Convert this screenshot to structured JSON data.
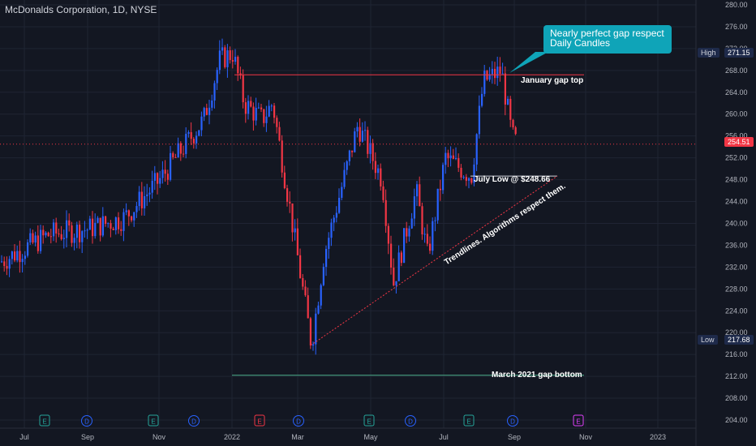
{
  "header": {
    "title": "McDonalds Corporation, 1D, NYSE"
  },
  "annotations": {
    "callout_line1": "Nearly perfect gap respect",
    "callout_line2": "Daily Candles",
    "january_gap_top": "January gap top",
    "july_low": "July Low @ $248.66",
    "trendline_note": "Trendlines. Algorithms respect them.",
    "march_gap_bottom": "March 2021 gap bottom"
  },
  "tags": {
    "high_label": "High",
    "high_value": "271.15",
    "last_value": "254.51",
    "low_label": "Low",
    "low_value": "217.68"
  },
  "chart_data": {
    "type": "candlestick",
    "title": "McDonalds Corporation, 1D, NYSE",
    "ylim": [
      202,
      281
    ],
    "y_ticks": [
      "204.00",
      "208.00",
      "212.00",
      "216.00",
      "220.00",
      "224.00",
      "228.00",
      "232.00",
      "236.00",
      "240.00",
      "244.00",
      "248.00",
      "252.00",
      "256.00",
      "260.00",
      "264.00",
      "268.00",
      "272.00",
      "276.00",
      "280.00"
    ],
    "x_ticks": [
      "Jul",
      "Sep",
      "Nov",
      "2022",
      "Mar",
      "May",
      "Jul",
      "Sep",
      "Nov",
      "2023"
    ],
    "price_path": [
      [
        "Jul",
        233
      ],
      [
        "Aug",
        238
      ],
      [
        "Sep",
        239
      ],
      [
        "Oct",
        241
      ],
      [
        "Nov",
        248
      ],
      [
        "Dec",
        259
      ],
      [
        "Dec",
        270
      ],
      [
        "2022",
        271.15
      ],
      [
        "Jan",
        262
      ],
      [
        "Feb",
        259
      ],
      [
        "Feb",
        262
      ],
      [
        "Mar",
        244
      ],
      [
        "Mar",
        217.68
      ],
      [
        "Apr",
        234
      ],
      [
        "Apr",
        258
      ],
      [
        "May",
        248
      ],
      [
        "May",
        229
      ],
      [
        "Jun",
        246
      ],
      [
        "Jun",
        234
      ],
      [
        "Jul",
        252
      ],
      [
        "Jul",
        248.66
      ],
      [
        "Aug",
        266
      ],
      [
        "Aug",
        268
      ],
      [
        "Sep",
        256
      ],
      [
        "Sep",
        254.51
      ]
    ],
    "last_price": 254.51,
    "high": 271.15,
    "low": 217.68,
    "levels": [
      {
        "label": "January gap top",
        "value": 267.2
      },
      {
        "label": "July Low @ $248.66",
        "value": 248.66
      },
      {
        "label": "March 2021 gap bottom",
        "value": 212.2
      }
    ],
    "trendline": {
      "from": [
        "Mar",
        217.68
      ],
      "to": [
        "Sep",
        248.66
      ]
    },
    "events": [
      "E",
      "D",
      "E",
      "D",
      "E",
      "D",
      "E",
      "D",
      "E",
      "D",
      "E"
    ],
    "colors": {
      "up": "#2962ff",
      "down": "#f23645",
      "background": "#131722",
      "grid": "#1f2433",
      "callout": "#0fa4b8"
    }
  }
}
